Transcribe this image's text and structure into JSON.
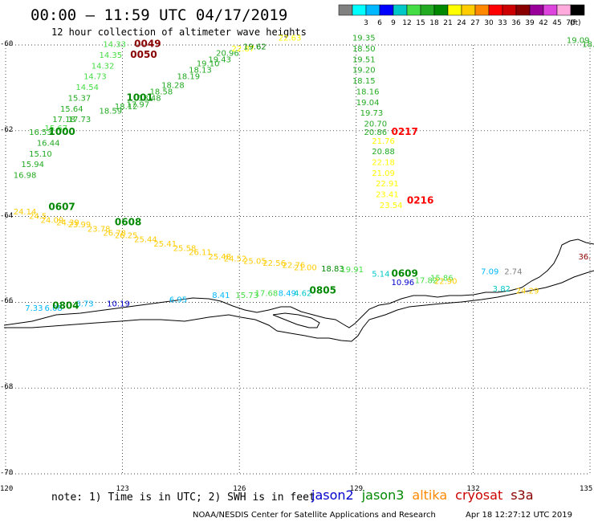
{
  "title": "00:00 – 11:59 UTC 04/17/2019",
  "subtitle": "12 hour collection of altimeter wave heights",
  "legend": {
    "unit": "(ft)",
    "items": [
      {
        "label": "",
        "color": "#808080"
      },
      {
        "label": "3",
        "color": "#00ffff"
      },
      {
        "label": "6",
        "color": "#00b8ff"
      },
      {
        "label": "9",
        "color": "#0000ff"
      },
      {
        "label": "12",
        "color": "#00c8c8"
      },
      {
        "label": "15",
        "color": "#44dd44"
      },
      {
        "label": "18",
        "color": "#22aa22"
      },
      {
        "label": "21",
        "color": "#008800"
      },
      {
        "label": "24",
        "color": "#ffff00"
      },
      {
        "label": "27",
        "color": "#ffcc00"
      },
      {
        "label": "30",
        "color": "#ff8800"
      },
      {
        "label": "33",
        "color": "#ff0000"
      },
      {
        "label": "36",
        "color": "#cc0000"
      },
      {
        "label": "39",
        "color": "#880000"
      },
      {
        "label": "42",
        "color": "#990099"
      },
      {
        "label": "45",
        "color": "#dd44dd"
      },
      {
        "label": "70",
        "color": "#ffaadd"
      },
      {
        "label": "",
        "color": "#000000"
      }
    ]
  },
  "axes": {
    "lat_labels": [
      "-60",
      "-62",
      "-64",
      "-66",
      "-68",
      "-70"
    ],
    "lon_labels": [
      "120",
      "123",
      "126",
      "129",
      "132",
      "135"
    ]
  },
  "passes": [
    {
      "label": "0049",
      "lon": 123.3,
      "lat": -60.05,
      "color": "#880000"
    },
    {
      "label": "0050",
      "lon": 123.2,
      "lat": -60.3,
      "color": "#880000"
    },
    {
      "label": "1001",
      "lon": 123.1,
      "lat": -61.3,
      "color": "#008800"
    },
    {
      "label": "1000",
      "lon": 121.1,
      "lat": -62.1,
      "color": "#008800"
    },
    {
      "label": "0217",
      "lon": 129.9,
      "lat": -62.1,
      "color": "#ff0000"
    },
    {
      "label": "0216",
      "lon": 130.3,
      "lat": -63.7,
      "color": "#ff0000"
    },
    {
      "label": "0607",
      "lon": 121.1,
      "lat": -63.85,
      "color": "#008800"
    },
    {
      "label": "0608",
      "lon": 122.8,
      "lat": -64.2,
      "color": "#008800"
    },
    {
      "label": "0609",
      "lon": 129.9,
      "lat": -65.4,
      "color": "#008800"
    },
    {
      "label": "0805",
      "lon": 127.8,
      "lat": -65.8,
      "color": "#008800"
    },
    {
      "label": "0804",
      "lon": 121.2,
      "lat": -66.15,
      "color": "#008800"
    }
  ],
  "observations": [
    {
      "v": "14.33",
      "lon": 122.5,
      "lat": -60.05,
      "color": "#44dd44"
    },
    {
      "v": "14.35",
      "lon": 122.4,
      "lat": -60.3,
      "color": "#44dd44"
    },
    {
      "v": "14.32",
      "lon": 122.2,
      "lat": -60.55,
      "color": "#44dd44"
    },
    {
      "v": "14.73",
      "lon": 122.0,
      "lat": -60.8,
      "color": "#44dd44"
    },
    {
      "v": "14.54",
      "lon": 121.8,
      "lat": -61.05,
      "color": "#44dd44"
    },
    {
      "v": "15.37",
      "lon": 121.6,
      "lat": -61.3,
      "color": "#22aa22"
    },
    {
      "v": "15.64",
      "lon": 121.4,
      "lat": -61.55,
      "color": "#22aa22"
    },
    {
      "v": "17.18",
      "lon": 121.2,
      "lat": -61.8,
      "color": "#22aa22"
    },
    {
      "v": "17.73",
      "lon": 121.6,
      "lat": -61.8,
      "color": "#22aa22"
    },
    {
      "v": "15.67",
      "lon": 121.0,
      "lat": -62.0,
      "color": "#44dd44"
    },
    {
      "v": "16.53",
      "lon": 120.6,
      "lat": -62.1,
      "color": "#22aa22"
    },
    {
      "v": "16.44",
      "lon": 120.8,
      "lat": -62.35,
      "color": "#22aa22"
    },
    {
      "v": "15.10",
      "lon": 120.6,
      "lat": -62.6,
      "color": "#22aa22"
    },
    {
      "v": "15.94",
      "lon": 120.4,
      "lat": -62.85,
      "color": "#22aa22"
    },
    {
      "v": "16.98",
      "lon": 120.2,
      "lat": -63.1,
      "color": "#22aa22"
    },
    {
      "v": "18.59",
      "lon": 122.4,
      "lat": -61.6,
      "color": "#22aa22"
    },
    {
      "v": "18.12",
      "lon": 122.8,
      "lat": -61.5,
      "color": "#22aa22"
    },
    {
      "v": "17.97",
      "lon": 123.1,
      "lat": -61.45,
      "color": "#22aa22"
    },
    {
      "v": "18.48",
      "lon": 123.4,
      "lat": -61.3,
      "color": "#22aa22"
    },
    {
      "v": "18.58",
      "lon": 123.7,
      "lat": -61.15,
      "color": "#22aa22"
    },
    {
      "v": "18.28",
      "lon": 124.0,
      "lat": -61.0,
      "color": "#22aa22"
    },
    {
      "v": "18.19",
      "lon": 124.4,
      "lat": -60.8,
      "color": "#22aa22"
    },
    {
      "v": "18.13",
      "lon": 124.7,
      "lat": -60.65,
      "color": "#22aa22"
    },
    {
      "v": "19.10",
      "lon": 124.9,
      "lat": -60.5,
      "color": "#22aa22"
    },
    {
      "v": "19.43",
      "lon": 125.2,
      "lat": -60.4,
      "color": "#22aa22"
    },
    {
      "v": "20.96",
      "lon": 125.4,
      "lat": -60.25,
      "color": "#22aa22"
    },
    {
      "v": "22.87",
      "lon": 125.8,
      "lat": -60.15,
      "color": "#ffff00"
    },
    {
      "v": "19.62",
      "lon": 126.1,
      "lat": -60.1,
      "color": "#008800"
    },
    {
      "v": "22.63",
      "lon": 127.0,
      "lat": -59.9,
      "color": "#ffff00"
    },
    {
      "v": "19.35",
      "lon": 128.9,
      "lat": -59.9,
      "color": "#22aa22"
    },
    {
      "v": "18.50",
      "lon": 128.9,
      "lat": -60.15,
      "color": "#22aa22"
    },
    {
      "v": "19.51",
      "lon": 128.9,
      "lat": -60.4,
      "color": "#22aa22"
    },
    {
      "v": "19.20",
      "lon": 128.9,
      "lat": -60.65,
      "color": "#22aa22"
    },
    {
      "v": "18.15",
      "lon": 128.9,
      "lat": -60.9,
      "color": "#22aa22"
    },
    {
      "v": "18.16",
      "lon": 129.0,
      "lat": -61.15,
      "color": "#22aa22"
    },
    {
      "v": "19.04",
      "lon": 129.0,
      "lat": -61.4,
      "color": "#22aa22"
    },
    {
      "v": "19.73",
      "lon": 129.1,
      "lat": -61.65,
      "color": "#22aa22"
    },
    {
      "v": "20.70",
      "lon": 129.2,
      "lat": -61.9,
      "color": "#22aa22"
    },
    {
      "v": "20.86",
      "lon": 129.2,
      "lat": -62.1,
      "color": "#22aa22"
    },
    {
      "v": "21.76",
      "lon": 129.4,
      "lat": -62.3,
      "color": "#ffff00"
    },
    {
      "v": "20.88",
      "lon": 129.4,
      "lat": -62.55,
      "color": "#22aa22"
    },
    {
      "v": "22.18",
      "lon": 129.4,
      "lat": -62.8,
      "color": "#ffff00"
    },
    {
      "v": "21.09",
      "lon": 129.4,
      "lat": -63.05,
      "color": "#ffff00"
    },
    {
      "v": "22.91",
      "lon": 129.5,
      "lat": -63.3,
      "color": "#ffff00"
    },
    {
      "v": "23.41",
      "lon": 129.5,
      "lat": -63.55,
      "color": "#ffff00"
    },
    {
      "v": "23.54",
      "lon": 129.6,
      "lat": -63.8,
      "color": "#ffff00"
    },
    {
      "v": "19.09",
      "lon": 134.4,
      "lat": -59.95,
      "color": "#22aa22"
    },
    {
      "v": "18.9",
      "lon": 134.8,
      "lat": -60.05,
      "color": "#22aa22"
    },
    {
      "v": "24.14",
      "lon": 120.2,
      "lat": -63.95,
      "color": "#ffcc00"
    },
    {
      "v": "24.5",
      "lon": 120.6,
      "lat": -64.05,
      "color": "#ffcc00"
    },
    {
      "v": "24.09",
      "lon": 120.9,
      "lat": -64.15,
      "color": "#ffcc00"
    },
    {
      "v": "24.39",
      "lon": 121.3,
      "lat": -64.2,
      "color": "#ffcc00"
    },
    {
      "v": "23.99",
      "lon": 121.6,
      "lat": -64.25,
      "color": "#ffcc00"
    },
    {
      "v": "23.78",
      "lon": 122.1,
      "lat": -64.35,
      "color": "#ffcc00"
    },
    {
      "v": "26.78",
      "lon": 122.5,
      "lat": -64.45,
      "color": "#ffcc00"
    },
    {
      "v": "26.25",
      "lon": 122.8,
      "lat": -64.5,
      "color": "#ffcc00"
    },
    {
      "v": "25.44",
      "lon": 123.3,
      "lat": -64.6,
      "color": "#ffcc00"
    },
    {
      "v": "25.41",
      "lon": 123.8,
      "lat": -64.7,
      "color": "#ffcc00"
    },
    {
      "v": "25.58",
      "lon": 124.3,
      "lat": -64.8,
      "color": "#ffcc00"
    },
    {
      "v": "26.11",
      "lon": 124.7,
      "lat": -64.9,
      "color": "#ffcc00"
    },
    {
      "v": "25.48",
      "lon": 125.2,
      "lat": -65.0,
      "color": "#ffcc00"
    },
    {
      "v": "24.52",
      "lon": 125.6,
      "lat": -65.05,
      "color": "#ffcc00"
    },
    {
      "v": "25.05",
      "lon": 126.1,
      "lat": -65.1,
      "color": "#ffcc00"
    },
    {
      "v": "22.56",
      "lon": 126.6,
      "lat": -65.15,
      "color": "#ffcc00"
    },
    {
      "v": "22.76",
      "lon": 127.1,
      "lat": -65.2,
      "color": "#ffcc00"
    },
    {
      "v": "21.00",
      "lon": 127.4,
      "lat": -65.25,
      "color": "#ffcc00"
    },
    {
      "v": "18.83",
      "lon": 128.1,
      "lat": -65.28,
      "color": "#008800"
    },
    {
      "v": "19.91",
      "lon": 128.6,
      "lat": -65.3,
      "color": "#44dd44"
    },
    {
      "v": "5.14",
      "lon": 129.4,
      "lat": -65.4,
      "color": "#00c8c8"
    },
    {
      "v": "10.96",
      "lon": 129.9,
      "lat": -65.6,
      "color": "#0000cc"
    },
    {
      "v": "17.82",
      "lon": 130.5,
      "lat": -65.55,
      "color": "#44dd44"
    },
    {
      "v": "15.86",
      "lon": 130.9,
      "lat": -65.5,
      "color": "#44dd44"
    },
    {
      "v": "22.90",
      "lon": 131.0,
      "lat": -65.57,
      "color": "#ffcc00"
    },
    {
      "v": "7.09",
      "lon": 132.2,
      "lat": -65.35,
      "color": "#00b8ff"
    },
    {
      "v": "2.74",
      "lon": 132.8,
      "lat": -65.35,
      "color": "#808080"
    },
    {
      "v": "36.",
      "lon": 134.7,
      "lat": -65.0,
      "color": "#880000"
    },
    {
      "v": "3.82",
      "lon": 132.5,
      "lat": -65.75,
      "color": "#00c8c8"
    },
    {
      "v": "24.29",
      "lon": 133.1,
      "lat": -65.8,
      "color": "#ffcc00"
    },
    {
      "v": "7.33",
      "lon": 120.5,
      "lat": -66.2,
      "color": "#00b8ff"
    },
    {
      "v": "6.08",
      "lon": 121.0,
      "lat": -66.2,
      "color": "#00b8ff"
    },
    {
      "v": "6.73",
      "lon": 121.8,
      "lat": -66.1,
      "color": "#00b8ff"
    },
    {
      "v": "10.19",
      "lon": 122.6,
      "lat": -66.1,
      "color": "#0000cc"
    },
    {
      "v": "6.95",
      "lon": 124.2,
      "lat": -66.0,
      "color": "#00b8ff"
    },
    {
      "v": "8.41",
      "lon": 125.3,
      "lat": -65.9,
      "color": "#00b8ff"
    },
    {
      "v": "15.73",
      "lon": 125.9,
      "lat": -65.9,
      "color": "#44dd44"
    },
    {
      "v": "17.68",
      "lon": 126.4,
      "lat": -65.85,
      "color": "#44dd44"
    },
    {
      "v": "8.49",
      "lon": 127.0,
      "lat": -65.85,
      "color": "#00b8ff"
    },
    {
      "v": "4.62",
      "lon": 127.4,
      "lat": -65.85,
      "color": "#00c8c8"
    }
  ],
  "note": "note: 1) Time is in UTC; 2) SWH is in feet",
  "satellites": [
    {
      "name": "jason2",
      "color": "#0000cc"
    },
    {
      "name": "jason3",
      "color": "#008800"
    },
    {
      "name": "altika",
      "color": "#ff8800"
    },
    {
      "name": "cryosat",
      "color": "#cc0000"
    },
    {
      "name": "s3a",
      "color": "#880000"
    }
  ],
  "credit": "NOAA/NESDIS Center for Satellite Applications and Research",
  "generated": "Apr 18 12:27:12 UTC 2019"
}
